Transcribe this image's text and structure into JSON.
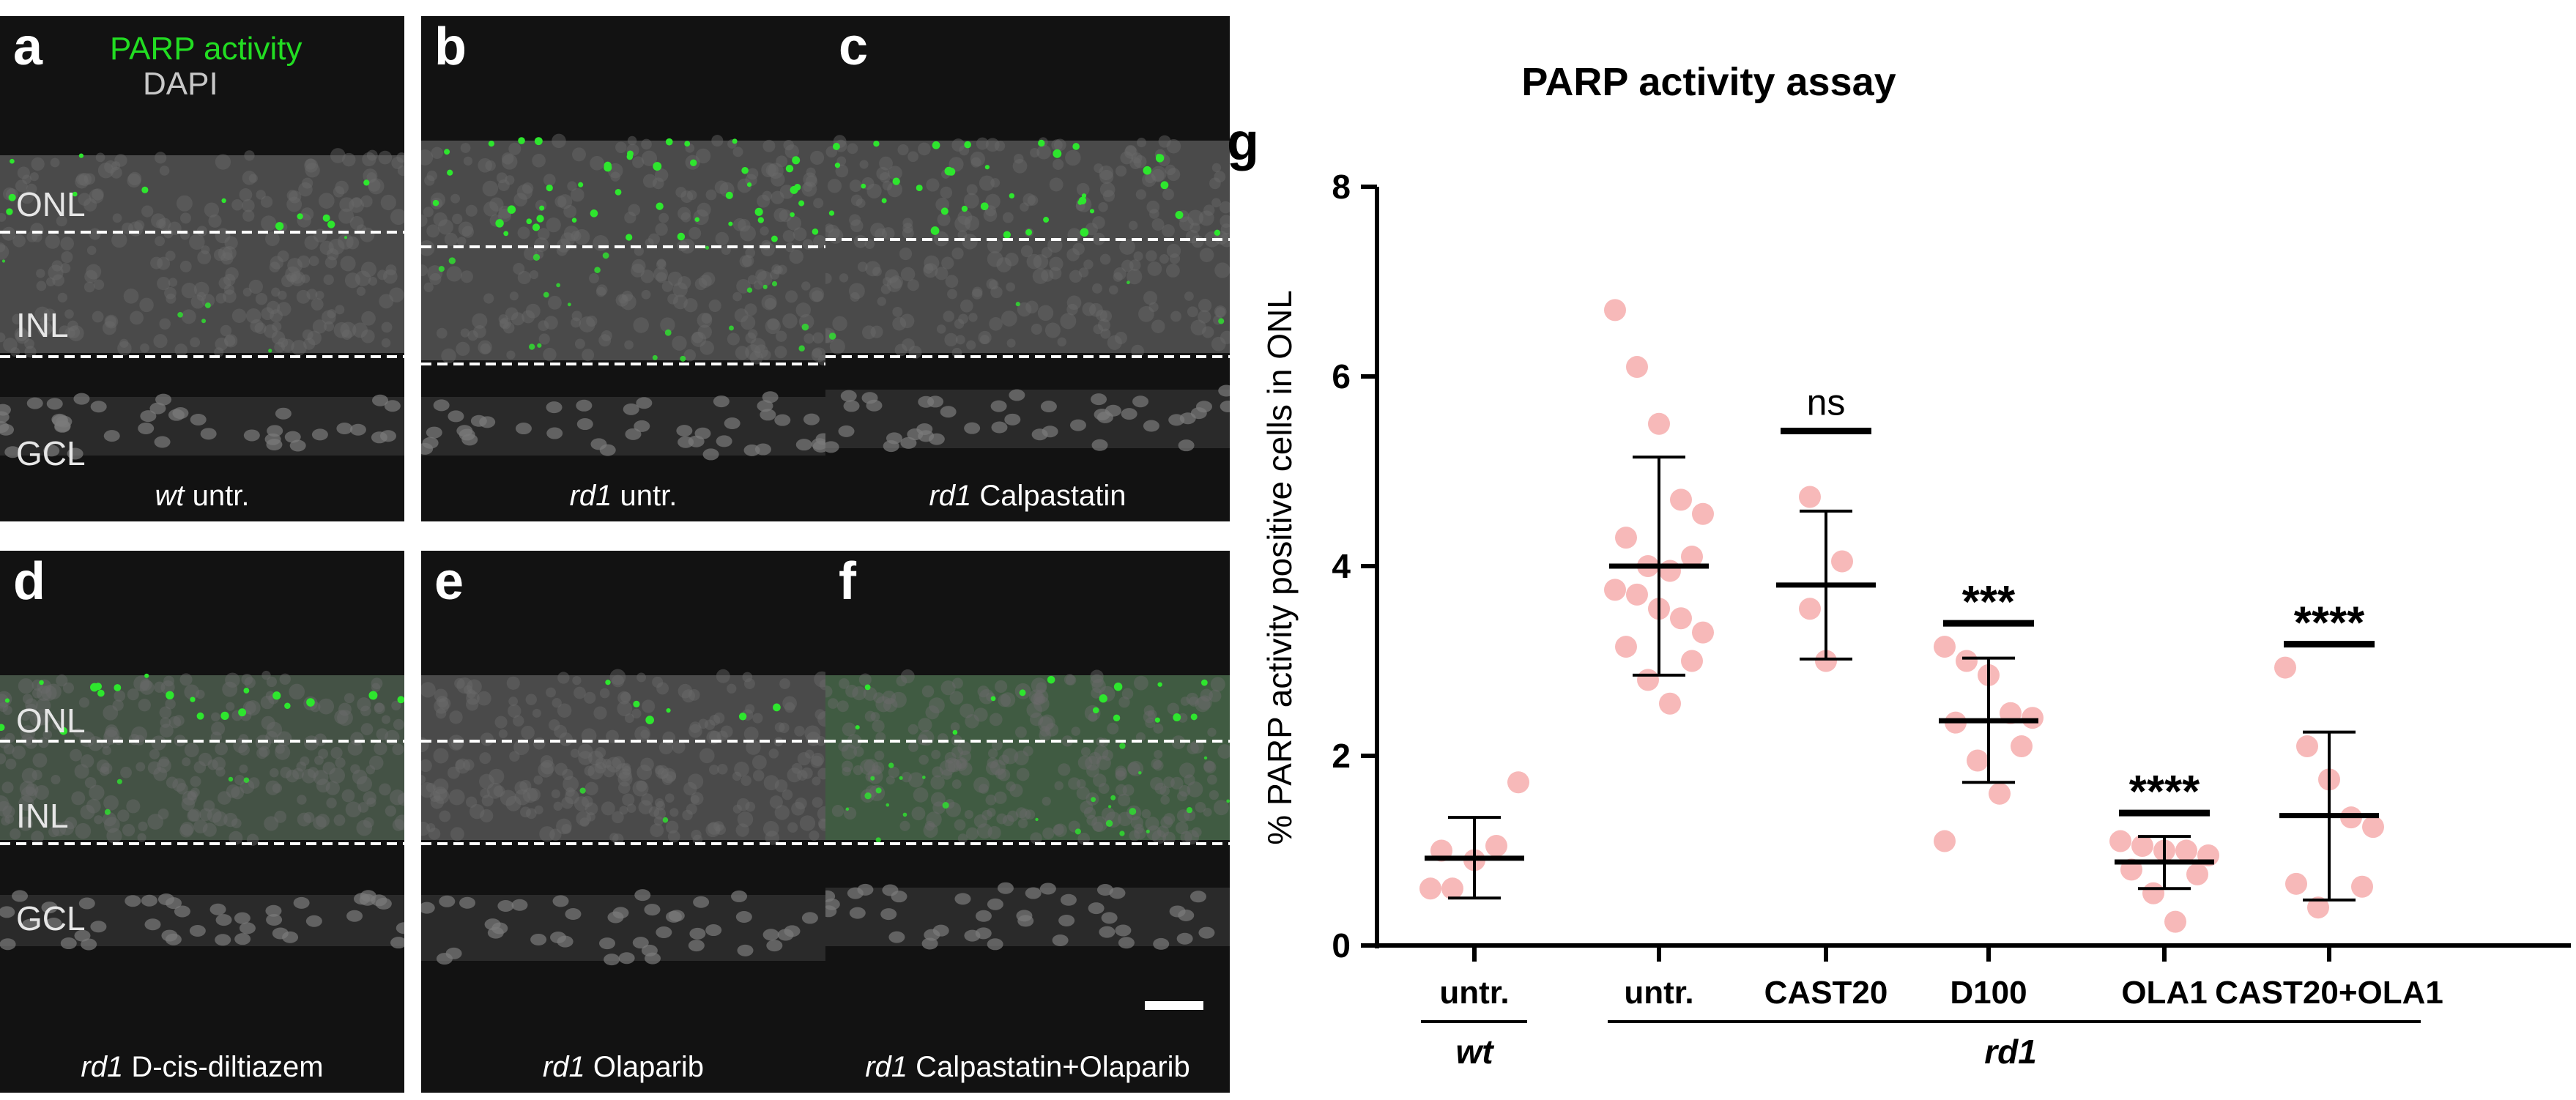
{
  "micrographs": {
    "stain_labels": {
      "parp": "PARP activity",
      "dapi": "DAPI"
    },
    "layer_labels": {
      "onl": "ONL",
      "inl": "INL",
      "gcl": "GCL"
    },
    "panels": [
      {
        "letter": "a",
        "genotype": "wt",
        "treatment": "untr."
      },
      {
        "letter": "b",
        "genotype": "rd1",
        "treatment": "untr."
      },
      {
        "letter": "c",
        "genotype": "rd1",
        "treatment": "Calpastatin"
      },
      {
        "letter": "d",
        "genotype": "rd1",
        "treatment": "D-cis-diltiazem"
      },
      {
        "letter": "e",
        "genotype": "rd1",
        "treatment": "Olaparib"
      },
      {
        "letter": "f",
        "genotype": "rd1",
        "treatment": "Calpastatin+Olaparib"
      }
    ]
  },
  "chart_data": {
    "type": "scatter",
    "panel_letter": "g",
    "title": "PARP activity assay",
    "ylabel": "% PARP activity positive cells in ONL",
    "ylim": [
      0,
      8
    ],
    "yticks": [
      0,
      2,
      4,
      6,
      8
    ],
    "colors": {
      "points": "#f7b9b9",
      "lines": "#000000"
    },
    "groups": [
      {
        "label": "untr.",
        "genotype": "wt",
        "mean": 0.92,
        "sd_low": 0.5,
        "sd_high": 1.35,
        "significance": "",
        "points": [
          0.6,
          0.6,
          0.9,
          1.05,
          1.72,
          1.0
        ]
      },
      {
        "label": "untr.",
        "genotype": "rd1",
        "mean": 4.0,
        "sd_low": 2.85,
        "sd_high": 5.15,
        "significance": "",
        "points": [
          6.7,
          6.1,
          5.5,
          4.7,
          4.55,
          4.3,
          4.1,
          4.0,
          3.95,
          3.75,
          3.7,
          3.55,
          3.45,
          3.3,
          3.15,
          3.0,
          2.8,
          2.55
        ]
      },
      {
        "label": "CAST20",
        "genotype": "rd1",
        "mean": 3.8,
        "sd_low": 3.02,
        "sd_high": 4.58,
        "significance": "ns",
        "points": [
          4.73,
          4.05,
          3.55,
          3.0
        ]
      },
      {
        "label": "D100",
        "genotype": "rd1",
        "mean": 2.37,
        "sd_low": 1.72,
        "sd_high": 3.03,
        "significance": "***",
        "points": [
          3.15,
          3.0,
          2.85,
          2.45,
          2.4,
          2.35,
          2.1,
          1.95,
          1.6,
          1.1
        ]
      },
      {
        "label": "OLA1",
        "genotype": "rd1",
        "mean": 0.88,
        "sd_low": 0.6,
        "sd_high": 1.15,
        "significance": "****",
        "points": [
          1.1,
          1.05,
          1.0,
          1.0,
          0.95,
          0.8,
          0.75,
          0.55,
          0.25
        ]
      },
      {
        "label": "CAST20+OLA1",
        "genotype": "rd1",
        "mean": 1.37,
        "sd_low": 0.48,
        "sd_high": 2.25,
        "significance": "****",
        "points": [
          2.93,
          2.1,
          1.75,
          1.35,
          1.25,
          0.65,
          0.62,
          0.4
        ]
      }
    ],
    "genotype_labels": {
      "wt": "wt",
      "rd1": "rd1"
    }
  }
}
